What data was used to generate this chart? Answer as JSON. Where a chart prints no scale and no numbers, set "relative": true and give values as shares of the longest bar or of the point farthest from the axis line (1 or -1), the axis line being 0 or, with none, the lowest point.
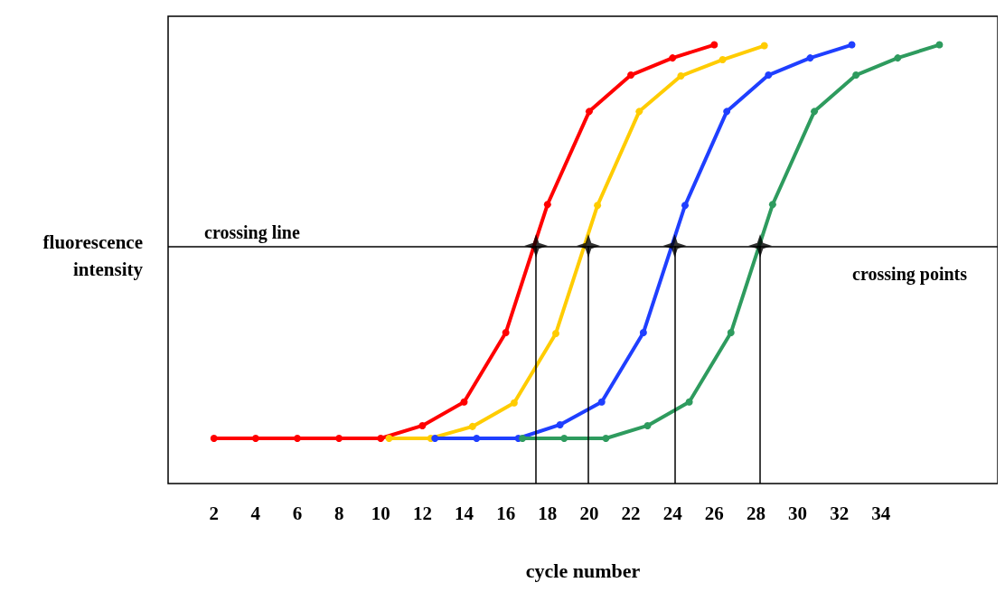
{
  "chart_data": {
    "type": "line",
    "xlabel": "cycle number",
    "ylabel": "fluorescence intensity",
    "relative": true,
    "xlim": [
      -0.2,
      39.6
    ],
    "xticks": [
      2,
      4,
      6,
      8,
      10,
      12,
      14,
      16,
      18,
      20,
      22,
      24,
      26,
      28,
      30,
      32,
      34
    ],
    "grid": false,
    "marker": "circle",
    "line_style": "solid",
    "series": [
      {
        "color": "#ff0000",
        "x": [
          2,
          4,
          6,
          8,
          10,
          12,
          14,
          16,
          18,
          20,
          22,
          24,
          26
        ],
        "values": [
          0.103,
          0.103,
          0.103,
          0.103,
          0.103,
          0.132,
          0.186,
          0.344,
          0.636,
          0.848,
          0.931,
          0.97,
          1
        ]
      },
      {
        "color": "#ffcc00",
        "x": [
          10.4,
          12.4,
          14.4,
          16.4,
          18.4,
          20.4,
          22.4,
          24.4,
          26.4,
          28.4
        ],
        "values": [
          0.103,
          0.103,
          0.13,
          0.184,
          0.342,
          0.634,
          0.848,
          0.929,
          0.966,
          0.998
        ]
      },
      {
        "color": "#1f3fff",
        "x": [
          12.6,
          14.6,
          16.6,
          18.6,
          20.6,
          22.6,
          24.6,
          26.6,
          28.6,
          30.6,
          32.6
        ],
        "values": [
          0.103,
          0.103,
          0.103,
          0.134,
          0.186,
          0.344,
          0.634,
          0.848,
          0.931,
          0.97,
          1
        ]
      },
      {
        "color": "#2e9b5e",
        "x": [
          16.8,
          18.8,
          20.8,
          22.8,
          24.8,
          26.8,
          28.8,
          30.8,
          32.8,
          34.8,
          36.8
        ],
        "values": [
          0.103,
          0.103,
          0.103,
          0.132,
          0.186,
          0.344,
          0.636,
          0.848,
          0.931,
          0.97,
          1
        ]
      },
      {
        "type": "scatter",
        "marker": "star",
        "color": "#000000",
        "x": [
          17.45,
          19.96,
          24.1,
          28.2
        ],
        "values": [
          0.542,
          0.542,
          0.542,
          0.542
        ]
      }
    ],
    "ref_lines": [
      {
        "axis": "y",
        "value": 0.542,
        "label": "crossing line",
        "color": "#000000"
      },
      {
        "axis": "x",
        "value": 17.45,
        "color": "#000000"
      },
      {
        "axis": "x",
        "value": 19.96,
        "color": "#000000"
      },
      {
        "axis": "x",
        "value": 24.1,
        "color": "#000000"
      },
      {
        "axis": "x",
        "value": 28.2,
        "color": "#000000"
      }
    ],
    "annotations": [
      "crossing points"
    ]
  }
}
